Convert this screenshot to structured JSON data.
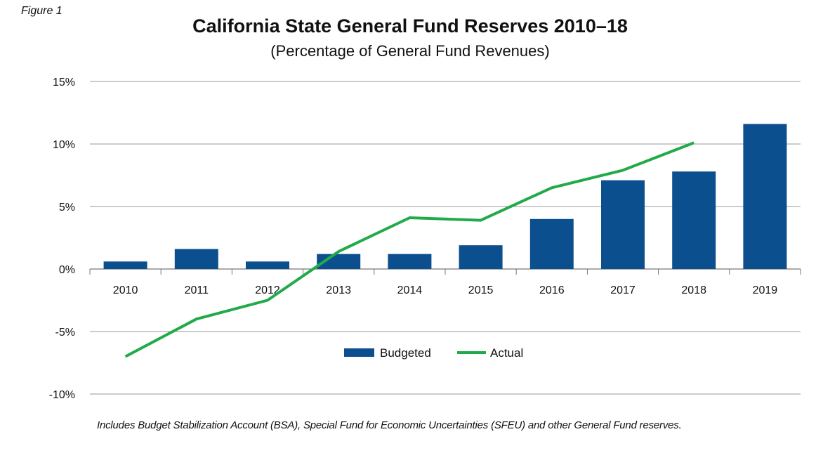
{
  "figure_label": "Figure 1",
  "chart_data": {
    "type": "bar",
    "title": "California State General Fund Reserves 2010–18",
    "subtitle": "(Percentage of General Fund Revenues)",
    "categories": [
      "2010",
      "2011",
      "2012",
      "2013",
      "2014",
      "2015",
      "2016",
      "2017",
      "2018",
      "2019"
    ],
    "ylim": [
      -10,
      15
    ],
    "yticks": [
      15,
      10,
      5,
      0,
      -5,
      -10
    ],
    "ytick_labels": [
      "15%",
      "10%",
      "5%",
      "0%",
      "-5%",
      "-10%"
    ],
    "grid": true,
    "legend_position": "bottom-center",
    "series": [
      {
        "name": "Budgeted",
        "type": "bar",
        "color": "#0c4f8f",
        "values": [
          0.6,
          1.6,
          0.6,
          1.2,
          1.2,
          1.9,
          4.0,
          7.1,
          7.8,
          11.6
        ]
      },
      {
        "name": "Actual",
        "type": "line",
        "color": "#21aa4a",
        "values": [
          -7.0,
          -4.0,
          -2.5,
          1.4,
          4.1,
          3.9,
          6.5,
          7.9,
          10.1,
          null
        ]
      }
    ]
  },
  "footnote": "Includes Budget Stabilization Account (BSA), Special Fund for Economic Uncertainties (SFEU) and other General Fund reserves."
}
